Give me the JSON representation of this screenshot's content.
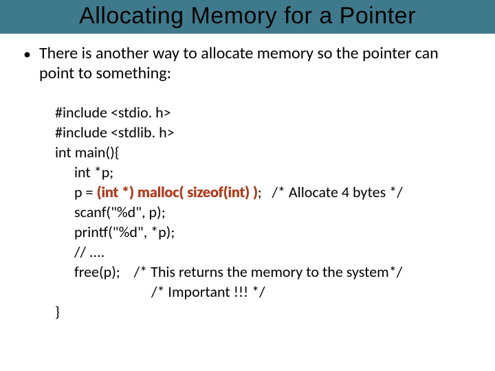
{
  "colors": {
    "title_bg": "#3e7a8c",
    "title_text": "#000000",
    "body_text": "#000000",
    "highlight": "#b23a1a",
    "page_bg": "#ffffff"
  },
  "fonts": {
    "title_family": "Comic Sans MS",
    "title_size_pt": 28,
    "body_family": "Calibri",
    "body_size_pt": 18,
    "code_size_pt": 17
  },
  "title": "Allocating Memory for a Pointer",
  "bullet": {
    "text": "There is another way to allocate memory so the pointer can point to something:"
  },
  "code": {
    "l1": "#include <stdio. h>",
    "l2": "#include <stdlib. h>",
    "l3": "int main(){",
    "l4": "int *p;",
    "l5a": "p = ",
    "l5_hl": "(int *) malloc( sizeof(int) )",
    "l5b": ";   /* Allocate 4 bytes */",
    "l6": "scanf(\"%d\", p);",
    "l7": "printf(\"%d\", *p);",
    "l8": "// ....",
    "l9": "free(p);    /* This returns the memory to the system*/",
    "l10": "/* Important !!! */",
    "l11": "}"
  }
}
